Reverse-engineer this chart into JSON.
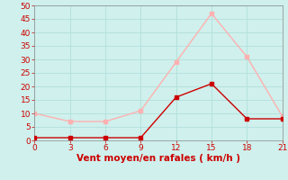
{
  "x_mean": [
    0,
    3,
    6,
    9,
    12,
    15,
    18,
    21
  ],
  "y_mean": [
    1,
    1,
    1,
    1,
    16,
    21,
    8,
    8
  ],
  "x_gust": [
    0,
    3,
    6,
    9,
    12,
    15,
    18,
    21
  ],
  "y_gust": [
    10,
    7,
    7,
    11,
    29,
    47,
    31,
    9
  ],
  "mean_color": "#cc0000",
  "gust_color": "#ffb0b0",
  "bg_color": "#cff0ec",
  "grid_color": "#aaddda",
  "xlabel": "Vent moyen/en rafales ( km/h )",
  "xlabel_color": "#cc0000",
  "tick_color": "#cc0000",
  "spine_color": "#888888",
  "xlim": [
    0,
    21
  ],
  "ylim": [
    0,
    50
  ],
  "xticks": [
    0,
    3,
    6,
    9,
    12,
    15,
    18,
    21
  ],
  "yticks": [
    0,
    5,
    10,
    15,
    20,
    25,
    30,
    35,
    40,
    45,
    50
  ],
  "marker": "s",
  "markersize": 2.5,
  "linewidth": 1.0,
  "tick_fontsize": 6.5,
  "xlabel_fontsize": 7.5
}
